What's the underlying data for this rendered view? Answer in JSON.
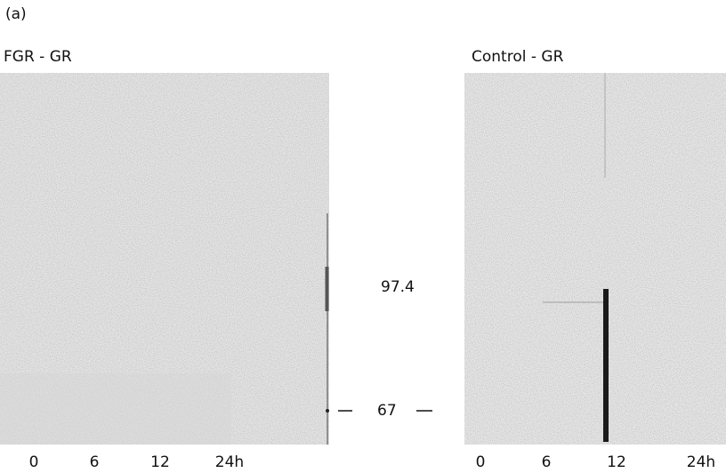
{
  "panel_label": "(a)",
  "gels": [
    {
      "title": "FGR - GR",
      "lanes": [
        "0",
        "6",
        "12",
        "24h"
      ]
    },
    {
      "title": "Control - GR",
      "lanes": [
        "0",
        "6",
        "12",
        "24h"
      ]
    }
  ],
  "markers": [
    "97.4",
    "67"
  ]
}
